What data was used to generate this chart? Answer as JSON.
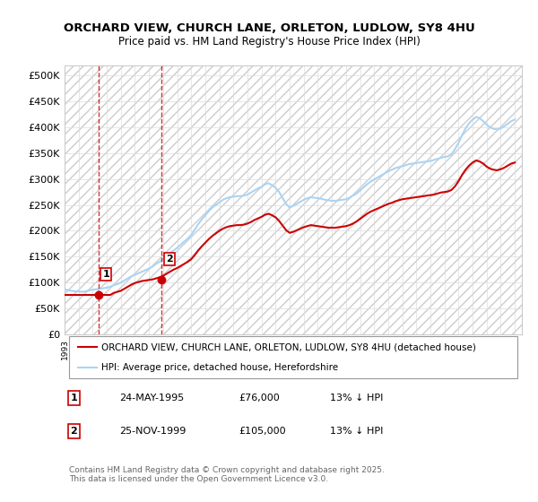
{
  "title_line1": "ORCHARD VIEW, CHURCH LANE, ORLETON, LUDLOW, SY8 4HU",
  "title_line2": "Price paid vs. HM Land Registry's House Price Index (HPI)",
  "ylabel": "",
  "xlim_start": 1993.0,
  "xlim_end": 2025.5,
  "ylim": [
    0,
    520000
  ],
  "yticks": [
    0,
    50000,
    100000,
    150000,
    200000,
    250000,
    300000,
    350000,
    400000,
    450000,
    500000
  ],
  "ytick_labels": [
    "£0",
    "£50K",
    "£100K",
    "£150K",
    "£200K",
    "£250K",
    "£300K",
    "£350K",
    "£400K",
    "£450K",
    "£500K"
  ],
  "sale1_x": 1995.39,
  "sale1_y": 76000,
  "sale1_label": "1",
  "sale2_x": 1999.9,
  "sale2_y": 105000,
  "sale2_label": "2",
  "hpi_color": "#aad4f5",
  "price_color": "#cc0000",
  "dashed_color": "#cc0000",
  "legend_entries": [
    "ORCHARD VIEW, CHURCH LANE, ORLETON, LUDLOW, SY8 4HU (detached house)",
    "HPI: Average price, detached house, Herefordshire"
  ],
  "table_rows": [
    [
      "1",
      "24-MAY-1995",
      "£76,000",
      "13% ↓ HPI"
    ],
    [
      "2",
      "25-NOV-1999",
      "£105,000",
      "13% ↓ HPI"
    ]
  ],
  "footnote": "Contains HM Land Registry data © Crown copyright and database right 2025.\nThis data is licensed under the Open Government Licence v3.0.",
  "hpi_data_x": [
    1993.0,
    1993.25,
    1993.5,
    1993.75,
    1994.0,
    1994.25,
    1994.5,
    1994.75,
    1995.0,
    1995.25,
    1995.5,
    1995.75,
    1996.0,
    1996.25,
    1996.5,
    1996.75,
    1997.0,
    1997.25,
    1997.5,
    1997.75,
    1998.0,
    1998.25,
    1998.5,
    1998.75,
    1999.0,
    1999.25,
    1999.5,
    1999.75,
    2000.0,
    2000.25,
    2000.5,
    2000.75,
    2001.0,
    2001.25,
    2001.5,
    2001.75,
    2002.0,
    2002.25,
    2002.5,
    2002.75,
    2003.0,
    2003.25,
    2003.5,
    2003.75,
    2004.0,
    2004.25,
    2004.5,
    2004.75,
    2005.0,
    2005.25,
    2005.5,
    2005.75,
    2006.0,
    2006.25,
    2006.5,
    2006.75,
    2007.0,
    2007.25,
    2007.5,
    2007.75,
    2008.0,
    2008.25,
    2008.5,
    2008.75,
    2009.0,
    2009.25,
    2009.5,
    2009.75,
    2010.0,
    2010.25,
    2010.5,
    2010.75,
    2011.0,
    2011.25,
    2011.5,
    2011.75,
    2012.0,
    2012.25,
    2012.5,
    2012.75,
    2013.0,
    2013.25,
    2013.5,
    2013.75,
    2014.0,
    2014.25,
    2014.5,
    2014.75,
    2015.0,
    2015.25,
    2015.5,
    2015.75,
    2016.0,
    2016.25,
    2016.5,
    2016.75,
    2017.0,
    2017.25,
    2017.5,
    2017.75,
    2018.0,
    2018.25,
    2018.5,
    2018.75,
    2019.0,
    2019.25,
    2019.5,
    2019.75,
    2020.0,
    2020.25,
    2020.5,
    2020.75,
    2021.0,
    2021.25,
    2021.5,
    2021.75,
    2022.0,
    2022.25,
    2022.5,
    2022.75,
    2023.0,
    2023.25,
    2023.5,
    2023.75,
    2024.0,
    2024.25,
    2024.5,
    2024.75,
    2025.0
  ],
  "hpi_data_y": [
    87000,
    85000,
    84000,
    83000,
    83000,
    82000,
    83000,
    85000,
    86000,
    87000,
    88000,
    89000,
    90000,
    92000,
    95000,
    97000,
    100000,
    104000,
    108000,
    112000,
    115000,
    118000,
    121000,
    124000,
    127000,
    131000,
    136000,
    140000,
    145000,
    151000,
    157000,
    162000,
    167000,
    173000,
    179000,
    185000,
    192000,
    202000,
    213000,
    222000,
    230000,
    238000,
    245000,
    250000,
    255000,
    260000,
    263000,
    265000,
    266000,
    267000,
    267000,
    268000,
    270000,
    274000,
    278000,
    282000,
    285000,
    290000,
    292000,
    288000,
    283000,
    275000,
    263000,
    252000,
    245000,
    248000,
    252000,
    256000,
    260000,
    263000,
    265000,
    264000,
    263000,
    262000,
    260000,
    259000,
    258000,
    258000,
    259000,
    260000,
    261000,
    264000,
    268000,
    272000,
    278000,
    284000,
    290000,
    295000,
    299000,
    303000,
    307000,
    311000,
    315000,
    318000,
    321000,
    323000,
    325000,
    327000,
    329000,
    330000,
    331000,
    332000,
    333000,
    334000,
    335000,
    337000,
    339000,
    341000,
    343000,
    344000,
    348000,
    358000,
    370000,
    385000,
    398000,
    408000,
    415000,
    420000,
    418000,
    412000,
    405000,
    400000,
    397000,
    396000,
    398000,
    402000,
    407000,
    412000,
    415000
  ],
  "price_data_x": [
    1993.0,
    1993.25,
    1993.5,
    1993.75,
    1994.0,
    1994.25,
    1994.5,
    1994.75,
    1995.0,
    1995.25,
    1995.5,
    1995.75,
    1996.0,
    1996.25,
    1996.5,
    1996.75,
    1997.0,
    1997.25,
    1997.5,
    1997.75,
    1998.0,
    1998.25,
    1998.5,
    1998.75,
    1999.0,
    1999.25,
    1999.5,
    1999.75,
    2000.0,
    2000.25,
    2000.5,
    2000.75,
    2001.0,
    2001.25,
    2001.5,
    2001.75,
    2002.0,
    2002.25,
    2002.5,
    2002.75,
    2003.0,
    2003.25,
    2003.5,
    2003.75,
    2004.0,
    2004.25,
    2004.5,
    2004.75,
    2005.0,
    2005.25,
    2005.5,
    2005.75,
    2006.0,
    2006.25,
    2006.5,
    2006.75,
    2007.0,
    2007.25,
    2007.5,
    2007.75,
    2008.0,
    2008.25,
    2008.5,
    2008.75,
    2009.0,
    2009.25,
    2009.5,
    2009.75,
    2010.0,
    2010.25,
    2010.5,
    2010.75,
    2011.0,
    2011.25,
    2011.5,
    2011.75,
    2012.0,
    2012.25,
    2012.5,
    2012.75,
    2013.0,
    2013.25,
    2013.5,
    2013.75,
    2014.0,
    2014.25,
    2014.5,
    2014.75,
    2015.0,
    2015.25,
    2015.5,
    2015.75,
    2016.0,
    2016.25,
    2016.5,
    2016.75,
    2017.0,
    2017.25,
    2017.5,
    2017.75,
    2018.0,
    2018.25,
    2018.5,
    2018.75,
    2019.0,
    2019.25,
    2019.5,
    2019.75,
    2020.0,
    2020.25,
    2020.5,
    2020.75,
    2021.0,
    2021.25,
    2021.5,
    2021.75,
    2022.0,
    2022.25,
    2022.5,
    2022.75,
    2023.0,
    2023.25,
    2023.5,
    2023.75,
    2024.0,
    2024.25,
    2024.5,
    2024.75,
    2025.0
  ],
  "price_data_y": [
    76000,
    76000,
    76000,
    76000,
    76000,
    76000,
    76000,
    76000,
    76000,
    76000,
    76000,
    76000,
    76000,
    76000,
    80000,
    82000,
    84000,
    88000,
    92000,
    96000,
    99000,
    101000,
    103000,
    104000,
    105000,
    106000,
    108000,
    110000,
    113000,
    117000,
    121000,
    125000,
    128000,
    132000,
    136000,
    140000,
    145000,
    153000,
    162000,
    170000,
    177000,
    184000,
    190000,
    195000,
    200000,
    204000,
    207000,
    209000,
    210000,
    211000,
    211000,
    212000,
    214000,
    217000,
    221000,
    224000,
    227000,
    231000,
    233000,
    230000,
    226000,
    219000,
    210000,
    201000,
    196000,
    198000,
    201000,
    204000,
    207000,
    209000,
    211000,
    210000,
    209000,
    208000,
    207000,
    206000,
    206000,
    206000,
    207000,
    208000,
    209000,
    211000,
    214000,
    218000,
    223000,
    228000,
    233000,
    237000,
    240000,
    243000,
    246000,
    249000,
    252000,
    254000,
    257000,
    259000,
    261000,
    262000,
    263000,
    264000,
    265000,
    266000,
    267000,
    268000,
    269000,
    270000,
    272000,
    274000,
    275000,
    276000,
    279000,
    286000,
    296000,
    308000,
    318000,
    326000,
    332000,
    336000,
    334000,
    330000,
    324000,
    320000,
    318000,
    317000,
    319000,
    322000,
    326000,
    330000,
    332000
  ]
}
